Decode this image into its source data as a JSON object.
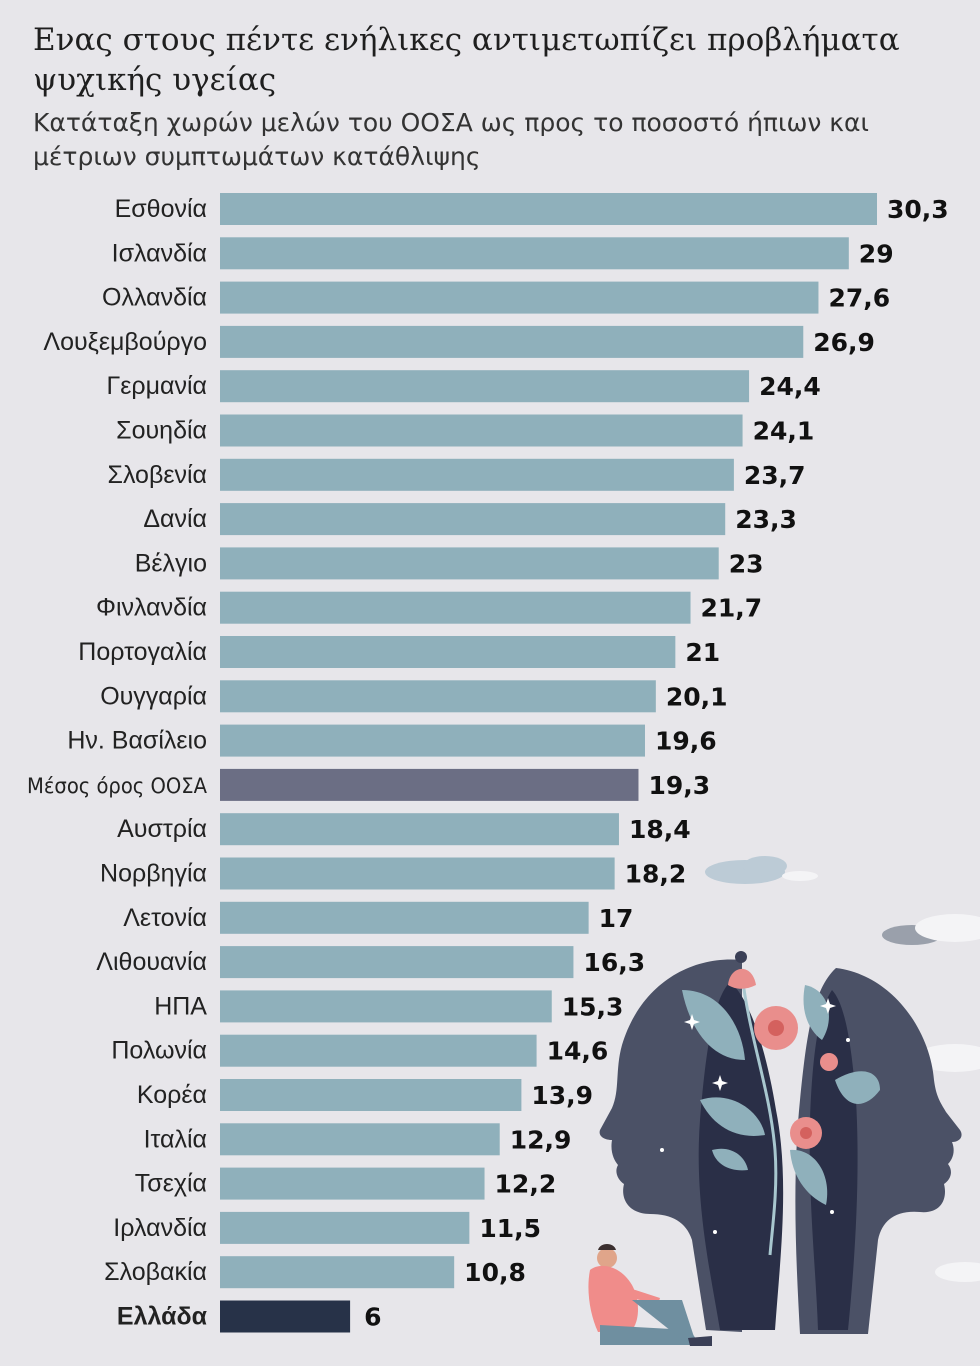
{
  "title": "Ενας στους πέντε ενήλικες αντιμετωπίζει προβλήματα ψυχικής υγείας",
  "subtitle": "Κατάταξη χωρών μελών του ΟΟΣΑ ως προς το ποσοστό ήπιων και μέτριων συμπτωμάτων κατάθλιψης",
  "colors": {
    "bar": "#8fb0bb",
    "average": "#6b6e84",
    "highlight": "#273248",
    "background": "#e7e6ea"
  },
  "illustration": {
    "icon": "two-heads-with-flowers-illustration"
  },
  "chart_data": {
    "type": "bar",
    "orientation": "horizontal",
    "title": "Ενας στους πέντε ενήλικες αντιμετωπίζει προβλήματα ψυχικής υγείας",
    "subtitle": "Κατάταξη χωρών μελών του ΟΟΣΑ ως προς το ποσοστό ήπιων και μέτριων συμπτωμάτων κατάθλιψης",
    "xlabel": "",
    "ylabel": "",
    "xlim": [
      0,
      30.3
    ],
    "grid": false,
    "legend": "none",
    "value_labels": [
      "30,3",
      "29",
      "27,6",
      "26,9",
      "24,4",
      "24,1",
      "23,7",
      "23,3",
      "23",
      "21,7",
      "21",
      "20,1",
      "19,6",
      "19,3",
      "18,4",
      "18,2",
      "17",
      "16,3",
      "15,3",
      "14,6",
      "13,9",
      "12,9",
      "12,2",
      "11,5",
      "10,8",
      "6"
    ],
    "categories": [
      "Εσθονία",
      "Ισλανδία",
      "Ολλανδία",
      "Λουξεμβούργο",
      "Γερμανία",
      "Σουηδία",
      "Σλοβενία",
      "Δανία",
      "Βέλγιο",
      "Φινλανδία",
      "Πορτογαλία",
      "Ουγγαρία",
      "Ην. Βασίλειο",
      "Μέσος όρος ΟΟΣΑ",
      "Αυστρία",
      "Νορβηγία",
      "Λετονία",
      "Λιθουανία",
      "ΗΠΑ",
      "Πολωνία",
      "Κορέα",
      "Ιταλία",
      "Τσεχία",
      "Ιρλανδία",
      "Σλοβακία",
      "Ελλάδα"
    ],
    "values": [
      30.3,
      29,
      27.6,
      26.9,
      24.4,
      24.1,
      23.7,
      23.3,
      23,
      21.7,
      21,
      20.1,
      19.6,
      19.3,
      18.4,
      18.2,
      17,
      16.3,
      15.3,
      14.6,
      13.9,
      12.9,
      12.2,
      11.5,
      10.8,
      6
    ],
    "highlight": {
      "average": "Μέσος όρος ΟΟΣΑ",
      "focus": "Ελλάδα"
    }
  }
}
